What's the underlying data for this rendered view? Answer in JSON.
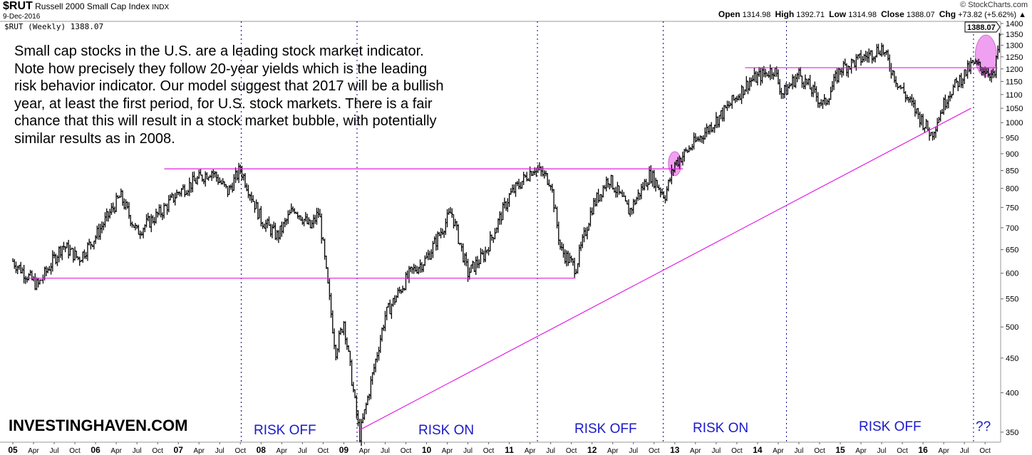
{
  "header": {
    "symbol": "$RUT",
    "name": "Russell 2000 Small Cap Index",
    "exchange": "INDX",
    "date": "9-Dec-2016",
    "legend": "$RUT (Weekly) 1388.07",
    "copyright": "© StockCharts.com",
    "open_label": "Open",
    "open": "1314.98",
    "high_label": "High",
    "high": "1392.71",
    "low_label": "Low",
    "low": "1314.98",
    "close_label": "Close",
    "close": "1388.07",
    "chg_label": "Chg",
    "chg": "+73.82 (+5.62%) ▲"
  },
  "annotation": "Small cap stocks in the U.S. are a leading stock market indicator. Note how precisely they follow 20-year yields which is the leading risk behavior indicator. Our model suggest that 2017 will be a bullish year, at least the first period, for U.S. stock markets. There is a fair chance that this will result in a stock market bubble, with potentially similar results as in 2008.",
  "watermark": "INVESTINGHAVEN.COM",
  "regimes": [
    {
      "label": "RISK OFF"
    },
    {
      "label": "RISK ON"
    },
    {
      "label": "RISK OFF"
    },
    {
      "label": "RISK ON"
    },
    {
      "label": "RISK OFF"
    },
    {
      "label": "??"
    }
  ],
  "colors": {
    "price": "#000000",
    "lines": "#e020e0",
    "ellipse": "#f0a0f0",
    "dividers": "#000080",
    "regime": "#1a1ac8"
  },
  "chart_data": {
    "type": "ohlc",
    "title": "$RUT Russell 2000 Small Cap Index (Weekly)",
    "yscale": "log",
    "ylim": [
      340,
      1400
    ],
    "xlim": [
      2004.9,
      2017.05
    ],
    "yticks": [
      350,
      400,
      450,
      500,
      550,
      600,
      650,
      700,
      750,
      800,
      850,
      900,
      950,
      1000,
      1050,
      1100,
      1150,
      1200,
      1250,
      1300,
      1350,
      1400
    ],
    "xticks": [
      {
        "t": 2005,
        "label": "05",
        "major": true
      },
      {
        "t": 2005.25,
        "label": "Apr"
      },
      {
        "t": 2005.5,
        "label": "Jul"
      },
      {
        "t": 2005.75,
        "label": "Oct"
      },
      {
        "t": 2006,
        "label": "06",
        "major": true
      },
      {
        "t": 2006.25,
        "label": "Apr"
      },
      {
        "t": 2006.5,
        "label": "Jul"
      },
      {
        "t": 2006.75,
        "label": "Oct"
      },
      {
        "t": 2007,
        "label": "07",
        "major": true
      },
      {
        "t": 2007.25,
        "label": "Apr"
      },
      {
        "t": 2007.5,
        "label": "Jul"
      },
      {
        "t": 2007.75,
        "label": "Oct"
      },
      {
        "t": 2008,
        "label": "08",
        "major": true
      },
      {
        "t": 2008.25,
        "label": "Apr"
      },
      {
        "t": 2008.5,
        "label": "Jul"
      },
      {
        "t": 2008.75,
        "label": "Oct"
      },
      {
        "t": 2009,
        "label": "09",
        "major": true
      },
      {
        "t": 2009.25,
        "label": "Apr"
      },
      {
        "t": 2009.5,
        "label": "Jul"
      },
      {
        "t": 2009.75,
        "label": "Oct"
      },
      {
        "t": 2010,
        "label": "10",
        "major": true
      },
      {
        "t": 2010.25,
        "label": "Apr"
      },
      {
        "t": 2010.5,
        "label": "Jul"
      },
      {
        "t": 2010.75,
        "label": "Oct"
      },
      {
        "t": 2011,
        "label": "11",
        "major": true
      },
      {
        "t": 2011.25,
        "label": "Apr"
      },
      {
        "t": 2011.5,
        "label": "Jul"
      },
      {
        "t": 2011.75,
        "label": "Oct"
      },
      {
        "t": 2012,
        "label": "12",
        "major": true
      },
      {
        "t": 2012.25,
        "label": "Apr"
      },
      {
        "t": 2012.5,
        "label": "Jul"
      },
      {
        "t": 2012.75,
        "label": "Oct"
      },
      {
        "t": 2013,
        "label": "13",
        "major": true
      },
      {
        "t": 2013.25,
        "label": "Apr"
      },
      {
        "t": 2013.5,
        "label": "Jul"
      },
      {
        "t": 2013.75,
        "label": "Oct"
      },
      {
        "t": 2014,
        "label": "14",
        "major": true
      },
      {
        "t": 2014.25,
        "label": "Apr"
      },
      {
        "t": 2014.5,
        "label": "Jul"
      },
      {
        "t": 2014.75,
        "label": "Oct"
      },
      {
        "t": 2015,
        "label": "15",
        "major": true
      },
      {
        "t": 2015.25,
        "label": "Apr"
      },
      {
        "t": 2015.5,
        "label": "Jul"
      },
      {
        "t": 2015.75,
        "label": "Oct"
      },
      {
        "t": 2016,
        "label": "16",
        "major": true
      },
      {
        "t": 2016.25,
        "label": "Apr"
      },
      {
        "t": 2016.5,
        "label": "Jul"
      },
      {
        "t": 2016.75,
        "label": "Oct"
      }
    ],
    "price_keypoints": [
      [
        2005.0,
        625
      ],
      [
        2005.3,
        575
      ],
      [
        2005.6,
        660
      ],
      [
        2005.8,
        630
      ],
      [
        2006.0,
        680
      ],
      [
        2006.3,
        780
      ],
      [
        2006.5,
        690
      ],
      [
        2006.8,
        740
      ],
      [
        2007.0,
        790
      ],
      [
        2007.4,
        850
      ],
      [
        2007.6,
        790
      ],
      [
        2007.75,
        855
      ],
      [
        2008.0,
        720
      ],
      [
        2008.2,
        680
      ],
      [
        2008.4,
        750
      ],
      [
        2008.6,
        700
      ],
      [
        2008.7,
        740
      ],
      [
        2008.9,
        460
      ],
      [
        2009.0,
        510
      ],
      [
        2009.19,
        345
      ],
      [
        2009.5,
        520
      ],
      [
        2009.8,
        600
      ],
      [
        2010.0,
        630
      ],
      [
        2010.3,
        740
      ],
      [
        2010.5,
        600
      ],
      [
        2010.7,
        640
      ],
      [
        2011.0,
        780
      ],
      [
        2011.3,
        860
      ],
      [
        2011.5,
        820
      ],
      [
        2011.62,
        650
      ],
      [
        2011.8,
        610
      ],
      [
        2012.0,
        750
      ],
      [
        2012.2,
        830
      ],
      [
        2012.45,
        740
      ],
      [
        2012.7,
        840
      ],
      [
        2012.88,
        780
      ],
      [
        2013.0,
        870
      ],
      [
        2013.3,
        950
      ],
      [
        2013.6,
        1040
      ],
      [
        2013.9,
        1150
      ],
      [
        2014.2,
        1200
      ],
      [
        2014.3,
        1100
      ],
      [
        2014.5,
        1180
      ],
      [
        2014.8,
        1060
      ],
      [
        2015.0,
        1200
      ],
      [
        2015.3,
        1250
      ],
      [
        2015.5,
        1290
      ],
      [
        2015.7,
        1140
      ],
      [
        2016.1,
        960
      ],
      [
        2016.3,
        1100
      ],
      [
        2016.6,
        1220
      ],
      [
        2016.8,
        1190
      ],
      [
        2016.86,
        1160
      ],
      [
        2016.94,
        1388
      ]
    ],
    "last_value": "1388.07",
    "support_lines": [
      {
        "value": 590,
        "from": 2005.2,
        "to": 2011.8
      },
      {
        "value": 855,
        "from": 2006.83,
        "to": 2013.1
      },
      {
        "value": 1205,
        "from": 2013.85,
        "to": 2016.9
      }
    ],
    "trendline": {
      "from": [
        2009.18,
        352
      ],
      "to": [
        2016.58,
        1050
      ]
    },
    "regime_dividers": [
      2007.76,
      2009.16,
      2011.34,
      2012.86,
      2014.35,
      2016.61
    ],
    "highlights": [
      {
        "t": 2013.0,
        "value": 870
      },
      {
        "t": 2016.76,
        "value": 1255
      }
    ]
  }
}
